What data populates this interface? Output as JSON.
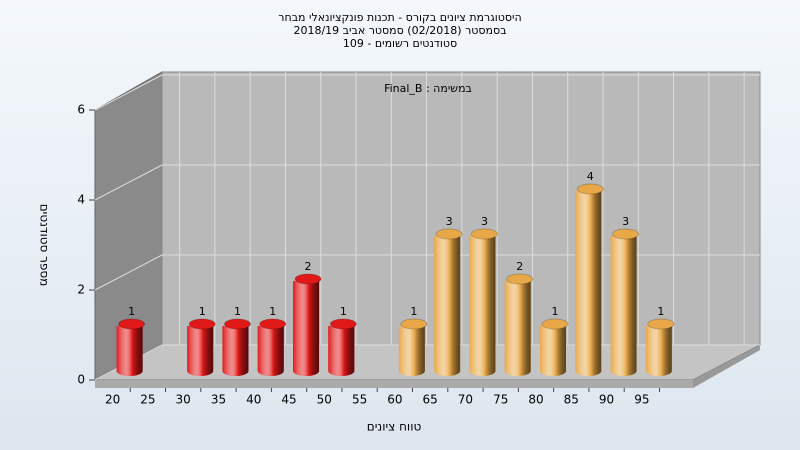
{
  "chart_data": {
    "type": "bar",
    "title": [
      "היסטוגרמת ציונים בקורס - תכנות פונקציונאלי מבחר",
      "בסמסטר  (02/2018)  סמסטר אביב 2018/19",
      "סטודנטים רשומים - 109"
    ],
    "annotation": "Final_B : במשימה",
    "x_label": "טווח ציונים",
    "y_label": "מספר סטודנטים",
    "categories": [
      "20",
      "25",
      "30",
      "35",
      "40",
      "45",
      "50",
      "55",
      "60",
      "65",
      "70",
      "75",
      "80",
      "85",
      "90",
      "95"
    ],
    "values": [
      1,
      0,
      1,
      1,
      1,
      2,
      1,
      0,
      1,
      3,
      3,
      2,
      1,
      4,
      3,
      1
    ],
    "colors": [
      "#e01818",
      "#e01818",
      "#e01818",
      "#e01818",
      "#e01818",
      "#e01818",
      "#e01818",
      "#e01818",
      "#e8a848",
      "#e8a848",
      "#e8a848",
      "#e8a848",
      "#e8a848",
      "#e8a848",
      "#e8a848",
      "#e8a848"
    ],
    "ylim": [
      0,
      6
    ],
    "yticks": [
      0,
      2,
      4,
      6
    ],
    "grid": true
  }
}
